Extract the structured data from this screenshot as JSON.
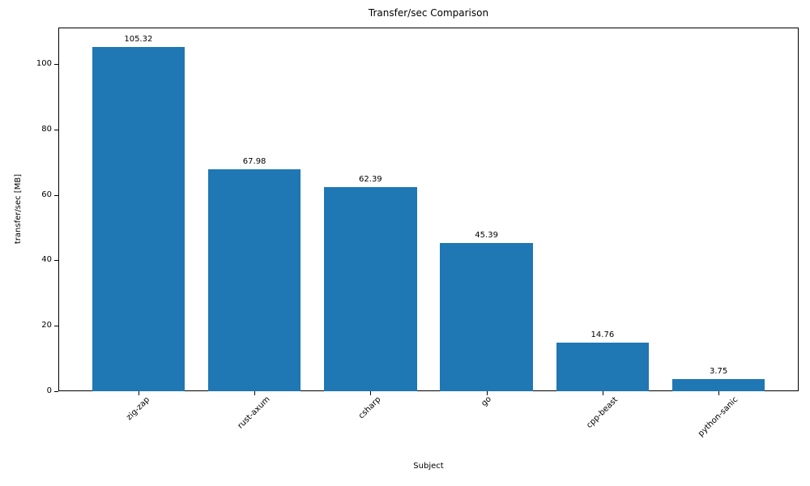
{
  "chart_data": {
    "type": "bar",
    "title": "Transfer/sec Comparison",
    "xlabel": "Subject",
    "ylabel": "transfer/sec [MB]",
    "categories": [
      "zig-zap",
      "rust-axum",
      "csharp",
      "go",
      "cpp-beast",
      "python-sanic"
    ],
    "values": [
      105.32,
      67.98,
      62.39,
      45.39,
      14.76,
      3.75
    ],
    "bar_labels": [
      "105.32",
      "67.98",
      "62.39",
      "45.39",
      "14.76",
      "3.75"
    ],
    "yticks": [
      0,
      20,
      40,
      60,
      80,
      100
    ],
    "ylim": [
      0,
      111.2
    ],
    "xtick_rotation_deg": 45,
    "grid": false,
    "legend": "none",
    "bar_color": "#1f77b4",
    "text_color": "#000000",
    "background_color": "#ffffff"
  }
}
